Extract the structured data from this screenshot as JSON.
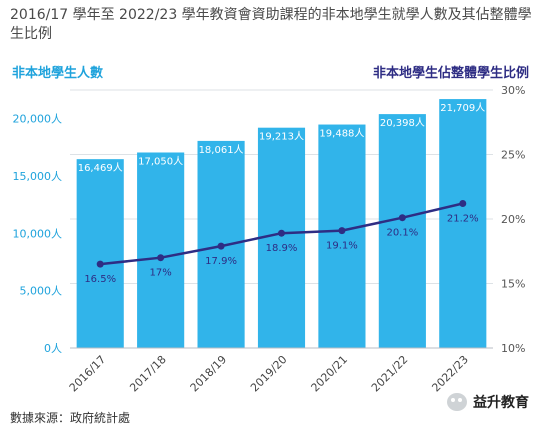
{
  "header": {
    "title": "2016/17 學年至 2022/23 學年教資會資助課程的非本地學生就學人數及其佔整體學生比例"
  },
  "footer": {
    "source": "數據來源：政府統計處",
    "watermark": "益升教育"
  },
  "chart_data": {
    "type": "bar",
    "title": "2016/17 學年至 2022/23 學年教資會資助課程的非本地學生就學人數及其佔整體學生比例",
    "categories": [
      "2016/17",
      "2017/18",
      "2018/19",
      "2019/20",
      "2020/21",
      "2021/22",
      "2022/23"
    ],
    "series": [
      {
        "name": "非本地學生人數",
        "type": "bar",
        "axis": "left",
        "values": [
          16469,
          17050,
          18061,
          19213,
          19488,
          20398,
          21709
        ],
        "labels": [
          "16,469人",
          "17,050人",
          "18,061人",
          "19,213人",
          "19,488人",
          "20,398人",
          "21,709人"
        ],
        "color": "#31b4ea"
      },
      {
        "name": "非本地學生佔整體學生比例",
        "type": "line",
        "axis": "right",
        "values": [
          16.5,
          17,
          17.9,
          18.9,
          19.1,
          20.1,
          21.2
        ],
        "labels": [
          "16.5%",
          "17%",
          "17.9%",
          "18.9%",
          "19.1%",
          "20.1%",
          "21.2%"
        ],
        "color": "#2e2d84"
      }
    ],
    "y_left": {
      "label": "非本地學生人數",
      "ylim": [
        0,
        22500
      ],
      "ticks": [
        0,
        5000,
        10000,
        15000,
        20000
      ],
      "tick_labels": [
        "0人",
        "5,000人",
        "10,000人",
        "15,000人",
        "20,000人"
      ]
    },
    "y_right": {
      "label": "非本地學生佔整體學生比例",
      "ylim": [
        10,
        30
      ],
      "ticks": [
        10,
        15,
        20,
        25,
        30
      ],
      "tick_labels": [
        "10%",
        "15%",
        "20%",
        "25%",
        "30%"
      ]
    },
    "grid": true,
    "legend": "none"
  }
}
